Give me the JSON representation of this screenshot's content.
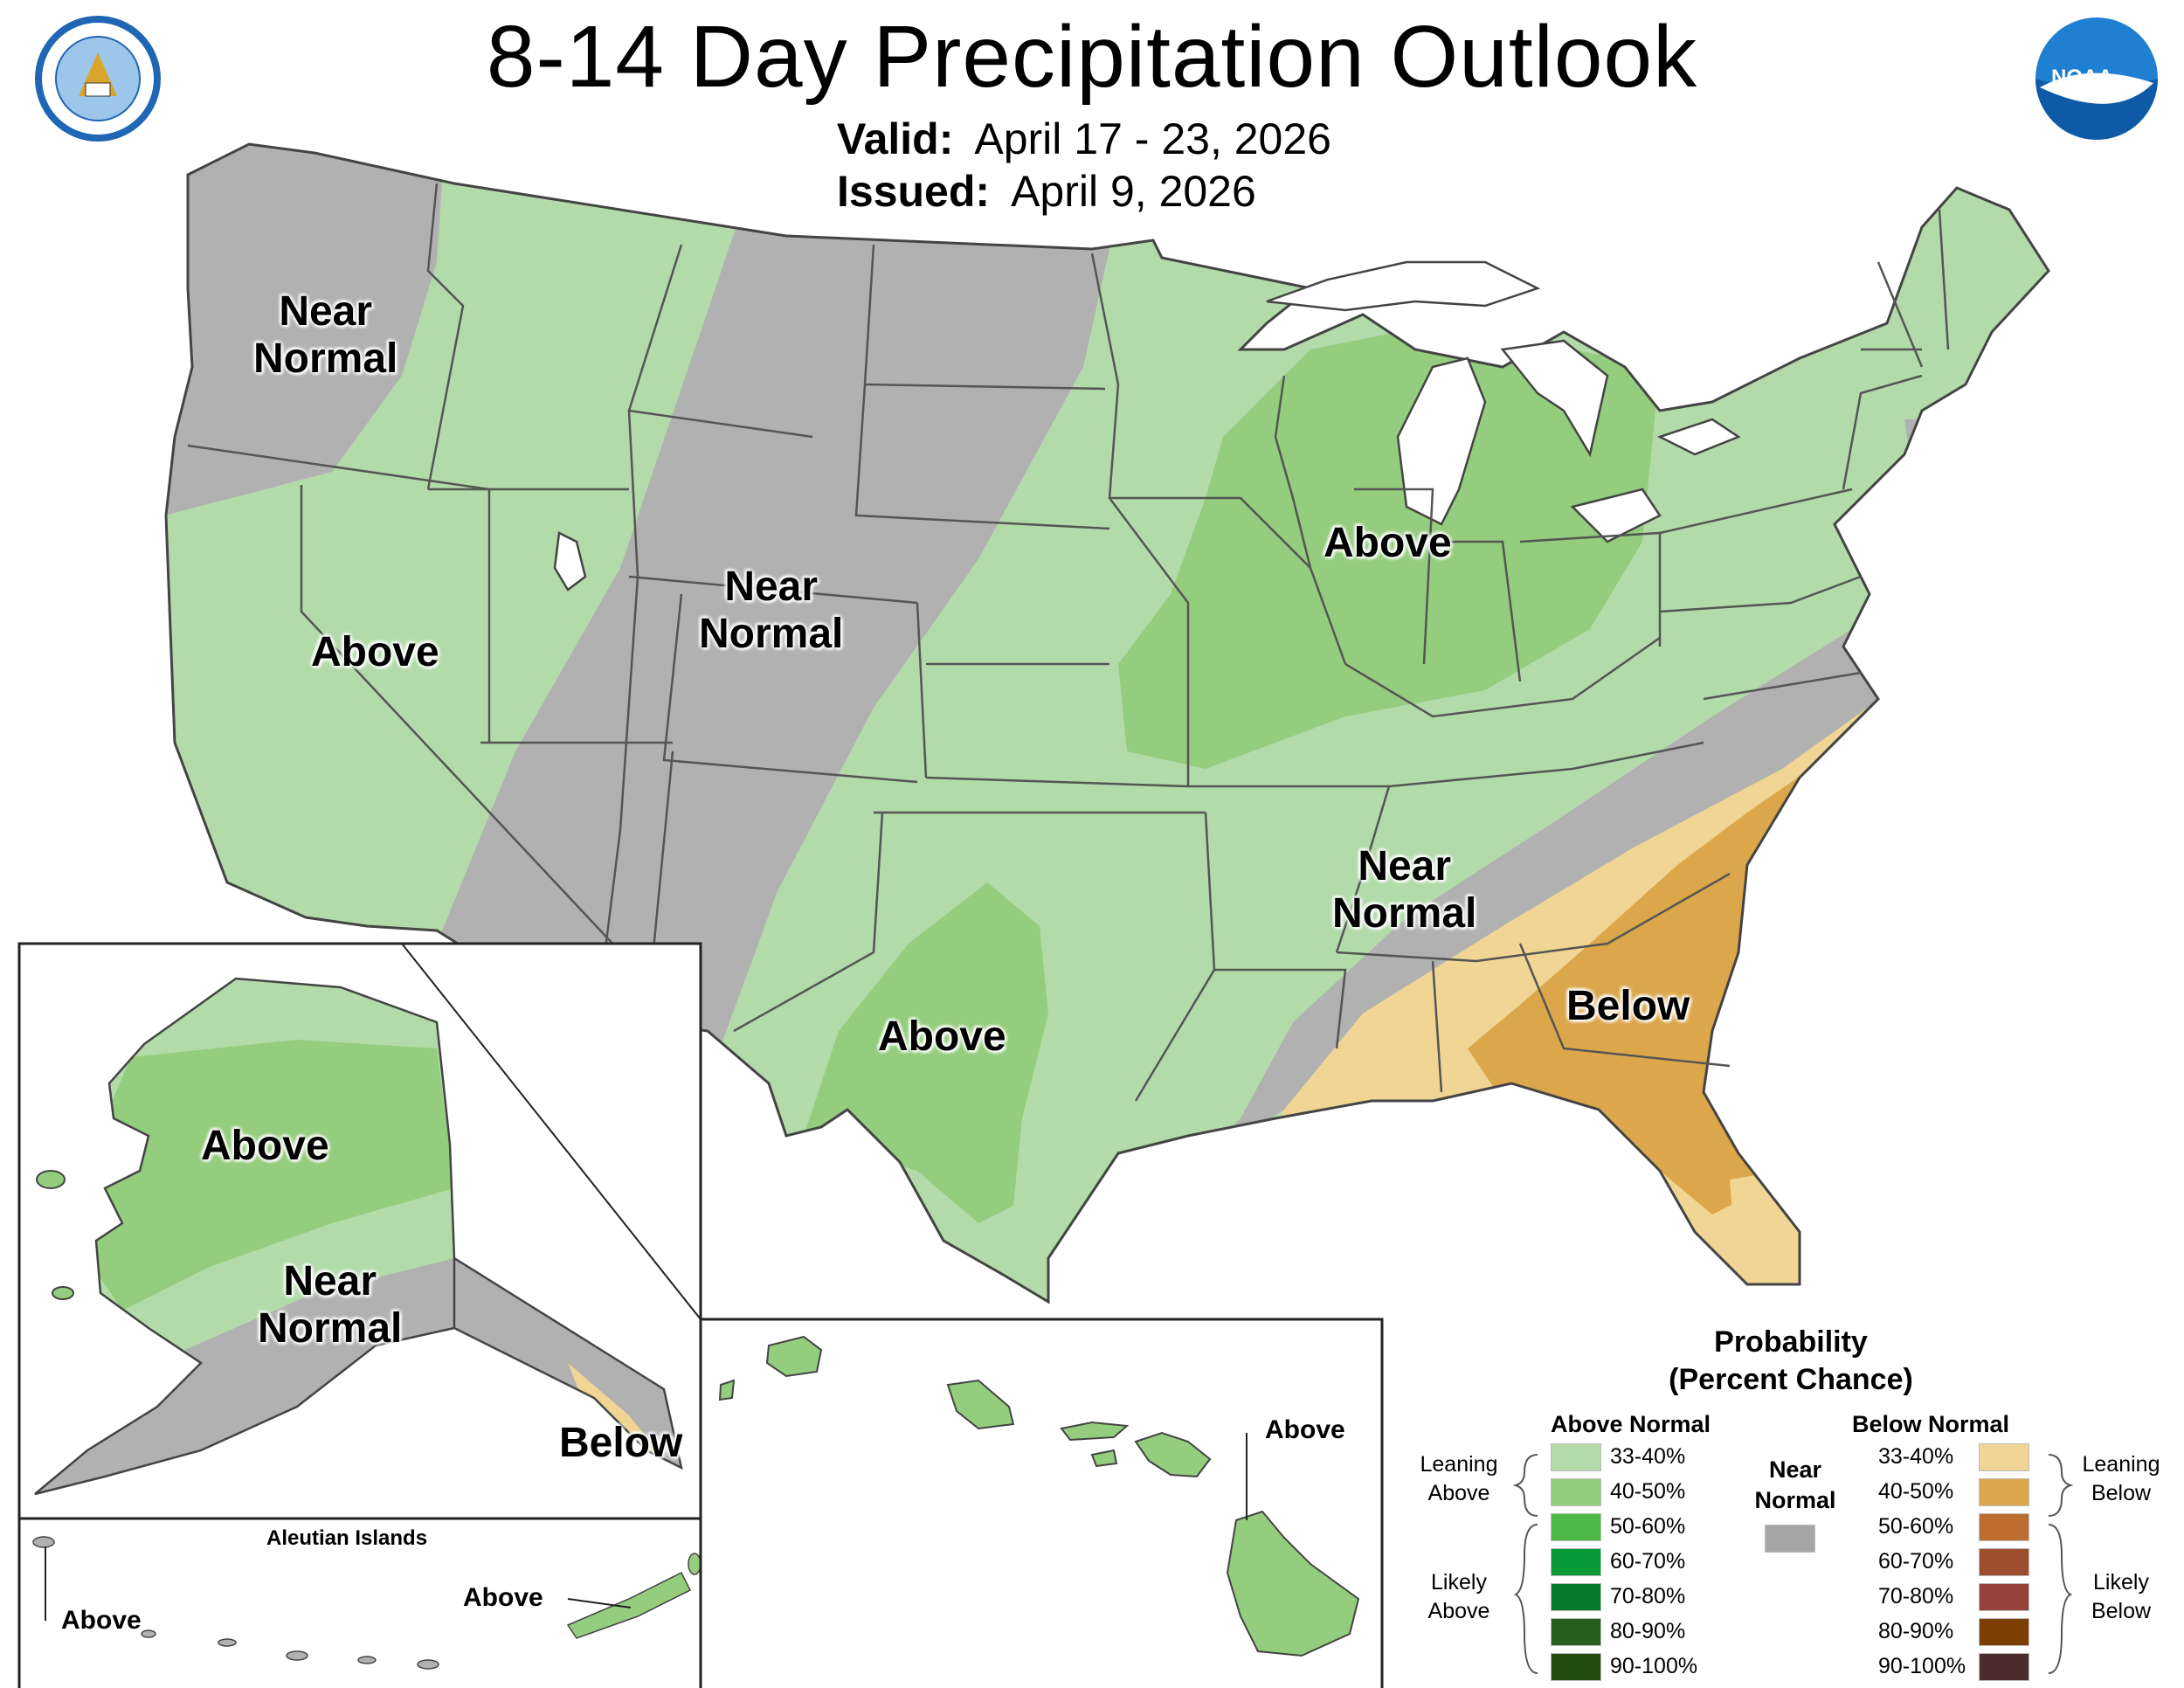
{
  "title": "8-14 Day Precipitation Outlook",
  "valid": {
    "label": "Valid:",
    "value": "April 17 - 23, 2026"
  },
  "issued": {
    "label": "Issued:",
    "value": "April 9, 2026"
  },
  "logos": {
    "left": "department-of-commerce-seal",
    "right": "noaa-logo",
    "right_text": "NOAA"
  },
  "map_labels": {
    "pacific_nw": [
      "Near",
      "Normal"
    ],
    "west": "Above",
    "rockies": [
      "Near",
      "Normal"
    ],
    "midwest": "Above",
    "texas": "Above",
    "southeast_near": [
      "Near",
      "Normal"
    ],
    "southeast_below": "Below",
    "alaska_above": "Above",
    "alaska_near": [
      "Near",
      "Normal"
    ],
    "alaska_below": "Below",
    "aleutian_title": "Aleutian Islands",
    "aleutian_left": "Above",
    "aleutian_right": "Above",
    "hawaii": "Above"
  },
  "legend": {
    "title_line1": "Probability",
    "title_line2": "(Percent Chance)",
    "above_header": "Above Normal",
    "below_header": "Below Normal",
    "near_header_line1": "Near",
    "near_header_line2": "Normal",
    "leaning_above": [
      "Leaning",
      "Above"
    ],
    "likely_above": [
      "Likely",
      "Above"
    ],
    "leaning_below": [
      "Leaning",
      "Below"
    ],
    "likely_below": [
      "Likely",
      "Below"
    ],
    "above_categories": [
      {
        "label": "33-40%",
        "color": "#b3dbaa"
      },
      {
        "label": "40-50%",
        "color": "#94cd7d"
      },
      {
        "label": "50-60%",
        "color": "#4cb846"
      },
      {
        "label": "60-70%",
        "color": "#079a37"
      },
      {
        "label": "70-80%",
        "color": "#077829"
      },
      {
        "label": "80-90%",
        "color": "#275f1e"
      },
      {
        "label": "90-100%",
        "color": "#234a10"
      }
    ],
    "near_color": "#a5a5a5",
    "below_categories": [
      {
        "label": "33-40%",
        "color": "#f0d594"
      },
      {
        "label": "40-50%",
        "color": "#dca74a"
      },
      {
        "label": "50-60%",
        "color": "#bd6d30"
      },
      {
        "label": "60-70%",
        "color": "#9c4e2f"
      },
      {
        "label": "70-80%",
        "color": "#94423a"
      },
      {
        "label": "80-90%",
        "color": "#7c3e03"
      },
      {
        "label": "90-100%",
        "color": "#4b2d2d"
      }
    ]
  },
  "colors": {
    "leaning_above": "#b3dbaa",
    "above_40_50": "#94cd7d",
    "near_normal": "#b1b1b1",
    "leaning_below": "#f0d594",
    "below_40_50": "#dca74a",
    "border": "#444444"
  }
}
